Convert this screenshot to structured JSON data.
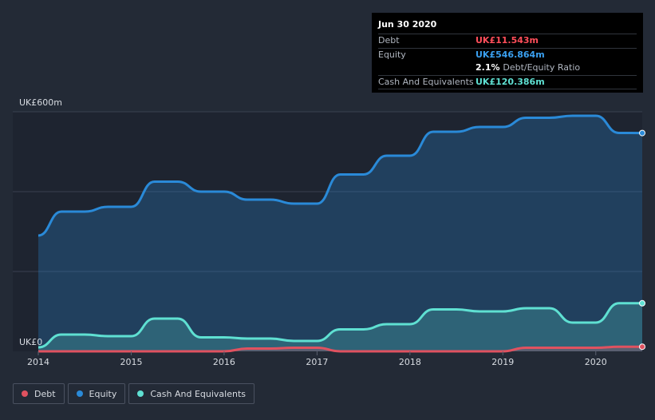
{
  "chart_data": {
    "type": "area",
    "y_top_label": "UK£600m",
    "y_bottom_label": "UK£0",
    "ylim": [
      0,
      600
    ],
    "xlim": [
      2014.0,
      2020.5
    ],
    "x_ticks": [
      "2014",
      "2015",
      "2016",
      "2017",
      "2018",
      "2019",
      "2020"
    ],
    "grid": true,
    "legend_position": "bottom-left",
    "series": [
      {
        "name": "Debt",
        "color": "#e05260",
        "x": [
          2014.0,
          2014.25,
          2016.0,
          2016.25,
          2016.5,
          2016.75,
          2017.0,
          2017.25,
          2019.0,
          2019.25,
          2019.5,
          2019.75,
          2020.0,
          2020.25,
          2020.5
        ],
        "values": [
          0,
          0,
          0,
          7,
          7,
          9,
          9,
          0,
          0,
          9,
          9,
          9,
          9,
          11.5,
          11.543
        ]
      },
      {
        "name": "Equity",
        "color": "#2a8ad8",
        "x": [
          2014.0,
          2014.25,
          2014.5,
          2014.75,
          2015.0,
          2015.25,
          2015.5,
          2015.75,
          2016.0,
          2016.25,
          2016.5,
          2016.75,
          2017.0,
          2017.25,
          2017.5,
          2017.75,
          2018.0,
          2018.25,
          2018.5,
          2018.75,
          2019.0,
          2019.25,
          2019.5,
          2019.75,
          2020.0,
          2020.25,
          2020.5
        ],
        "values": [
          290,
          350,
          350,
          362,
          362,
          425,
          425,
          400,
          400,
          380,
          380,
          370,
          370,
          443,
          443,
          490,
          490,
          550,
          550,
          562,
          562,
          585,
          585,
          590,
          590,
          547,
          546.864
        ]
      },
      {
        "name": "Cash And Equivalents",
        "color": "#5fe0d2",
        "x": [
          2014.0,
          2014.25,
          2014.5,
          2014.75,
          2015.0,
          2015.25,
          2015.5,
          2015.75,
          2016.0,
          2016.25,
          2016.5,
          2016.75,
          2017.0,
          2017.25,
          2017.5,
          2017.75,
          2018.0,
          2018.25,
          2018.5,
          2018.75,
          2019.0,
          2019.25,
          2019.5,
          2019.75,
          2020.0,
          2020.25,
          2020.5
        ],
        "values": [
          10,
          42,
          42,
          38,
          38,
          82,
          82,
          35,
          35,
          32,
          32,
          26,
          26,
          55,
          55,
          68,
          68,
          105,
          105,
          100,
          100,
          108,
          108,
          72,
          72,
          120.4,
          120.386
        ]
      }
    ]
  },
  "tooltip": {
    "date": "Jun 30 2020",
    "debt_label": "Debt",
    "debt_value": "UK£11.543m",
    "equity_label": "Equity",
    "equity_value": "UK£546.864m",
    "ratio_value": "2.1%",
    "ratio_label": "Debt/Equity Ratio",
    "cash_label": "Cash And Equivalents",
    "cash_value": "UK£120.386m"
  },
  "legend": [
    {
      "label": "Debt",
      "color": "#e05260"
    },
    {
      "label": "Equity",
      "color": "#2a8ad8"
    },
    {
      "label": "Cash And Equivalents",
      "color": "#5fe0d2"
    }
  ]
}
